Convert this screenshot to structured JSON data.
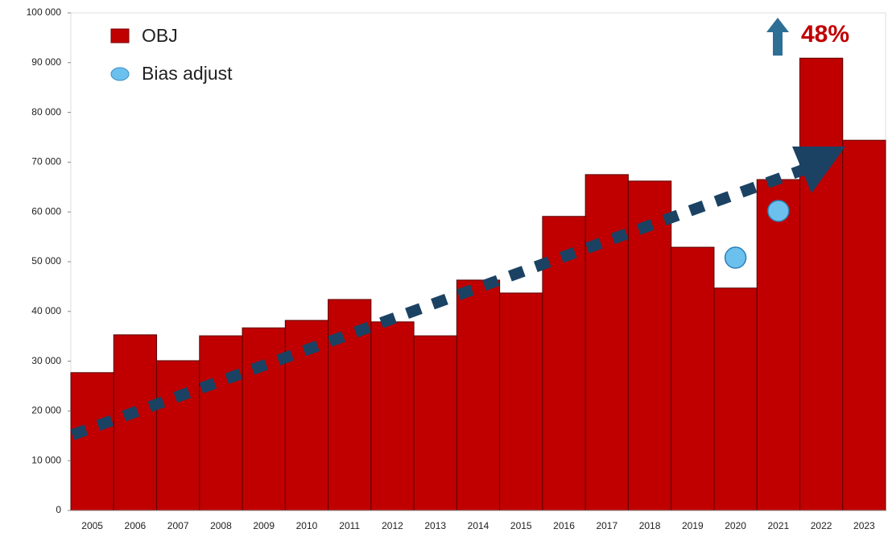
{
  "chart_data": {
    "type": "bar",
    "categories": [
      "2005",
      "2006",
      "2007",
      "2008",
      "2009",
      "2010",
      "2011",
      "2012",
      "2013",
      "2014",
      "2015",
      "2016",
      "2017",
      "2018",
      "2019",
      "2020",
      "2021",
      "2022",
      "2023"
    ],
    "series": [
      {
        "name": "OBJ",
        "type": "bar",
        "color": "#c00000",
        "values": [
          27700,
          35300,
          30100,
          35100,
          36700,
          38200,
          42400,
          37900,
          35100,
          46300,
          43700,
          59100,
          67500,
          66200,
          52900,
          44700,
          66500,
          90900,
          74400
        ]
      },
      {
        "name": "Bias adjust",
        "type": "scatter",
        "color": "#6cc0ee",
        "values": [
          null,
          null,
          null,
          null,
          null,
          null,
          null,
          null,
          null,
          null,
          null,
          null,
          null,
          null,
          null,
          50800,
          60200,
          null,
          null
        ]
      }
    ],
    "ylim": [
      0,
      100000
    ],
    "yticks": [
      0,
      {
        "value": 10000,
        "label": "10 000"
      },
      {
        "value": 20000,
        "label": "20 000"
      },
      {
        "value": 30000,
        "label": "30 000"
      },
      {
        "value": 40000,
        "label": "40 000"
      },
      {
        "value": 50000,
        "label": "50 000"
      },
      {
        "value": 60000,
        "label": "60 000"
      },
      {
        "value": 70000,
        "label": "70 000"
      },
      {
        "value": 80000,
        "label": "80 000"
      },
      {
        "value": 90000,
        "label": "90 000"
      },
      {
        "value": 100000,
        "label": "100 000"
      }
    ],
    "annotation": "48%"
  }
}
